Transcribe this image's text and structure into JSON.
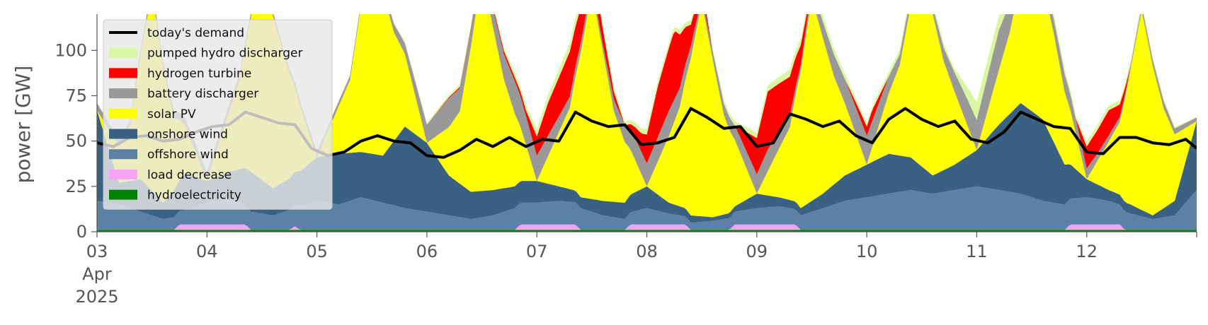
{
  "chart_data": {
    "type": "area",
    "title": "",
    "ylabel": "power [GW]",
    "xlabel": "",
    "ylim": [
      0,
      120
    ],
    "xlim": [
      0,
      10
    ],
    "y_ticks": [
      0,
      25,
      50,
      75,
      100
    ],
    "x_ticks": [
      {
        "day": 0,
        "label": "03",
        "sub1": "Apr",
        "sub2": "2025"
      },
      {
        "day": 1,
        "label": "04"
      },
      {
        "day": 2,
        "label": "05"
      },
      {
        "day": 3,
        "label": "06"
      },
      {
        "day": 4,
        "label": "07"
      },
      {
        "day": 5,
        "label": "08"
      },
      {
        "day": 6,
        "label": "09"
      },
      {
        "day": 7,
        "label": "10"
      },
      {
        "day": 8,
        "label": "11"
      },
      {
        "day": 9,
        "label": "12"
      }
    ],
    "legend_position": "top-left",
    "grid": false,
    "stack_order_bottom_to_top": [
      "hydroelectricity",
      "load decrease",
      "offshore wind",
      "onshore wind",
      "solar PV",
      "battery discharger",
      "hydrogen turbine",
      "pumped hydro discharger"
    ],
    "series": [
      {
        "name": "today's demand",
        "color": "#000000",
        "kind": "line",
        "x": [
          0,
          0.15,
          0.3,
          0.45,
          0.6,
          0.75,
          0.9,
          1.05,
          1.2,
          1.35,
          1.5,
          1.65,
          1.8,
          1.95,
          2.1,
          2.25,
          2.4,
          2.55,
          2.7,
          2.85,
          3.0,
          3.15,
          3.3,
          3.45,
          3.6,
          3.75,
          3.9,
          4.05,
          4.2,
          4.35,
          4.5,
          4.65,
          4.8,
          4.95,
          5.1,
          5.25,
          5.4,
          5.55,
          5.7,
          5.85,
          6.0,
          6.15,
          6.3,
          6.45,
          6.6,
          6.75,
          6.9,
          7.05,
          7.2,
          7.35,
          7.5,
          7.65,
          7.8,
          7.95,
          8.1,
          8.25,
          8.4,
          8.55,
          8.7,
          8.85,
          9.0,
          9.15,
          9.3,
          9.45,
          9.6,
          9.75,
          9.9,
          10.0
        ],
        "y": [
          49,
          47,
          52,
          53,
          50,
          51,
          55,
          58,
          59,
          66,
          63,
          60,
          59,
          46,
          42,
          44,
          50,
          53,
          50,
          49,
          42,
          41,
          45,
          51,
          47,
          52,
          47,
          51,
          50,
          66,
          61,
          58,
          59,
          48,
          49,
          52,
          68,
          63,
          57,
          58,
          47,
          49,
          65,
          62,
          58,
          61,
          53,
          49,
          62,
          68,
          62,
          58,
          61,
          51,
          49,
          55,
          66,
          62,
          58,
          57,
          44,
          43,
          52,
          52,
          49,
          48,
          51,
          46
        ]
      },
      {
        "name": "pumped hydro discharger",
        "color": "#d9f7a1",
        "x": [
          0,
          1,
          2,
          3,
          3.7,
          4.0,
          4.4,
          4.8,
          5.0,
          5.7,
          6.3,
          6.8,
          7.0,
          7.5,
          7.8,
          8.0,
          8.5,
          8.9,
          9.0,
          9.5,
          10.0
        ],
        "y": [
          0,
          0,
          0,
          1,
          2,
          4,
          5,
          2,
          3,
          2,
          4,
          3,
          2,
          3,
          2,
          10,
          4,
          2,
          3,
          2,
          0
        ]
      },
      {
        "name": "hydrogen turbine",
        "color": "#ff0000",
        "x": [
          0,
          1,
          2,
          3,
          3.8,
          3.9,
          4.1,
          4.3,
          4.6,
          4.8,
          4.95,
          5.1,
          5.25,
          5.4,
          5.6,
          5.8,
          6.0,
          6.1,
          6.3,
          6.5,
          6.8,
          6.95,
          7.05,
          7.2,
          7.5,
          7.8,
          7.95,
          8.2,
          8.6,
          8.9,
          9.0,
          9.2,
          9.4,
          10.0
        ],
        "y": [
          0,
          0,
          0,
          0,
          2,
          3,
          18,
          25,
          8,
          0,
          10,
          28,
          38,
          12,
          0,
          0,
          20,
          32,
          22,
          0,
          0,
          4,
          6,
          0,
          0,
          0,
          0,
          0,
          0,
          0,
          12,
          14,
          0,
          0
        ]
      },
      {
        "name": "battery discharger",
        "color": "#999999",
        "x": [
          0,
          0.5,
          1,
          1.5,
          2,
          2.5,
          2.8,
          3.0,
          3.2,
          3.5,
          3.8,
          4.0,
          4.3,
          4.6,
          4.9,
          5.2,
          5.5,
          5.8,
          6.1,
          6.4,
          6.7,
          7.0,
          7.3,
          7.6,
          7.9,
          8.2,
          8.5,
          8.8,
          9.1,
          9.4,
          9.7,
          10.0
        ],
        "y": [
          4,
          3,
          5,
          2,
          3,
          2,
          6,
          10,
          16,
          6,
          18,
          14,
          6,
          4,
          12,
          14,
          3,
          8,
          12,
          3,
          12,
          16,
          6,
          4,
          14,
          22,
          4,
          10,
          4,
          2,
          4,
          2
        ]
      },
      {
        "name": "solar PV",
        "color": "#ffff00",
        "x": [
          0,
          0.3,
          0.5,
          0.7,
          1.0,
          1.3,
          1.5,
          1.7,
          2.0,
          2.3,
          2.5,
          2.7,
          3.0,
          3.3,
          3.5,
          3.7,
          4.0,
          4.3,
          4.5,
          4.7,
          5.0,
          5.3,
          5.5,
          5.7,
          6.0,
          6.3,
          6.5,
          6.7,
          7.0,
          7.3,
          7.5,
          7.7,
          8.0,
          8.3,
          8.5,
          8.7,
          9.0,
          9.3,
          9.5,
          9.7,
          10.0
        ],
        "y": [
          0,
          30,
          110,
          40,
          0,
          50,
          120,
          70,
          0,
          40,
          120,
          60,
          0,
          40,
          120,
          60,
          0,
          45,
          115,
          50,
          0,
          55,
          118,
          55,
          0,
          40,
          112,
          60,
          0,
          50,
          118,
          60,
          0,
          45,
          90,
          60,
          0,
          40,
          110,
          55,
          0
        ]
      },
      {
        "name": "onshore wind",
        "color": "#3b6182",
        "x": [
          0,
          0.2,
          0.4,
          0.6,
          0.8,
          1.0,
          1.2,
          1.4,
          1.6,
          1.8,
          2.0,
          2.2,
          2.4,
          2.6,
          2.8,
          3.0,
          3.2,
          3.4,
          3.6,
          3.8,
          4.0,
          4.2,
          4.4,
          4.6,
          4.8,
          5.0,
          5.2,
          5.4,
          5.6,
          5.8,
          6.0,
          6.2,
          6.4,
          6.6,
          6.8,
          7.0,
          7.2,
          7.4,
          7.6,
          7.8,
          8.0,
          8.2,
          8.4,
          8.6,
          8.8,
          9.0,
          9.2,
          9.4,
          9.6,
          9.8,
          10.0
        ],
        "y": [
          50,
          12,
          18,
          9,
          20,
          12,
          15,
          22,
          15,
          18,
          24,
          28,
          25,
          26,
          45,
          38,
          22,
          15,
          14,
          12,
          12,
          8,
          6,
          8,
          9,
          12,
          6,
          4,
          2,
          3,
          8,
          5,
          4,
          8,
          14,
          18,
          22,
          18,
          10,
          14,
          20,
          36,
          50,
          45,
          22,
          10,
          6,
          5,
          2,
          8,
          38
        ]
      },
      {
        "name": "offshore wind",
        "color": "#5b82a5",
        "x": [
          0,
          0.2,
          0.4,
          0.6,
          0.8,
          1.0,
          1.2,
          1.4,
          1.6,
          1.8,
          2.0,
          2.2,
          2.4,
          2.6,
          2.8,
          3.0,
          3.2,
          3.4,
          3.6,
          3.8,
          4.0,
          4.2,
          4.4,
          4.6,
          4.8,
          5.0,
          5.2,
          5.4,
          5.6,
          5.8,
          6.0,
          6.2,
          6.4,
          6.6,
          6.8,
          7.0,
          7.2,
          7.4,
          7.6,
          7.8,
          8.0,
          8.2,
          8.4,
          8.6,
          8.8,
          9.0,
          9.2,
          9.4,
          9.6,
          9.8,
          10.0
        ],
        "y": [
          16,
          14,
          10,
          6,
          8,
          12,
          14,
          10,
          8,
          12,
          16,
          14,
          18,
          15,
          12,
          10,
          8,
          6,
          8,
          12,
          12,
          13,
          12,
          8,
          6,
          9,
          6,
          4,
          5,
          7,
          9,
          10,
          8,
          12,
          16,
          18,
          20,
          22,
          20,
          22,
          24,
          22,
          20,
          16,
          14,
          15,
          13,
          9,
          6,
          8,
          22
        ]
      },
      {
        "name": "load decrease",
        "color": "#f4a3f5",
        "x": [
          0,
          0.7,
          0.75,
          1.35,
          1.4,
          1.75,
          1.8,
          1.85,
          3.8,
          3.85,
          4.35,
          4.4,
          4.8,
          4.85,
          5.35,
          5.4,
          5.75,
          5.8,
          6.35,
          6.4,
          7.0,
          8.8,
          8.85,
          9.3,
          9.35,
          10.0
        ],
        "y": [
          0,
          0,
          3,
          3,
          0,
          0,
          2,
          0,
          0,
          3,
          3,
          0,
          0,
          3,
          3,
          0,
          0,
          3,
          3,
          0,
          0,
          0,
          3,
          3,
          0,
          0
        ]
      },
      {
        "name": "hydroelectricity",
        "color": "#008000",
        "x": [
          0,
          10.0
        ],
        "y": [
          1,
          1
        ]
      }
    ]
  }
}
